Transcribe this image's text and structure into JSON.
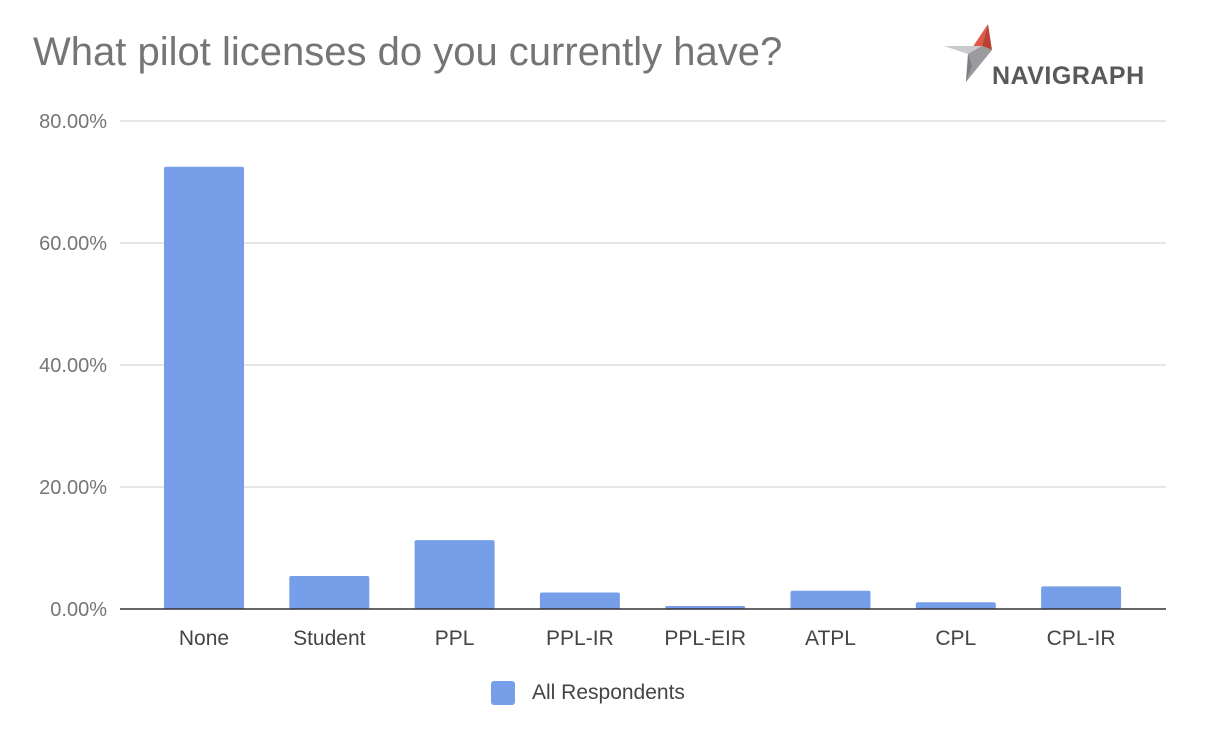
{
  "title": "What pilot licenses do you currently have?",
  "logo": {
    "text": "NAVIGRAPH"
  },
  "legend": {
    "label": "All Respondents"
  },
  "colors": {
    "bar": "#779ee8",
    "grid": "#cccccc",
    "axis": "#333333",
    "logo_red": "#e05a4a"
  },
  "chart_data": {
    "type": "bar",
    "title": "What pilot licenses do you currently have?",
    "xlabel": "",
    "ylabel": "",
    "categories": [
      "None",
      "Student",
      "PPL",
      "PPL-IR",
      "PPL-EIR",
      "ATPL",
      "CPL",
      "CPL-IR"
    ],
    "series": [
      {
        "name": "All Respondents",
        "values": [
          72.5,
          5.4,
          11.3,
          2.7,
          0.5,
          3.0,
          1.1,
          3.7
        ]
      }
    ],
    "ylim": [
      0,
      80
    ],
    "yticks": [
      0,
      20,
      40,
      60,
      80
    ],
    "ytick_labels": [
      "0.00%",
      "20.00%",
      "40.00%",
      "60.00%",
      "80.00%"
    ],
    "grid": true,
    "legend_position": "bottom"
  }
}
